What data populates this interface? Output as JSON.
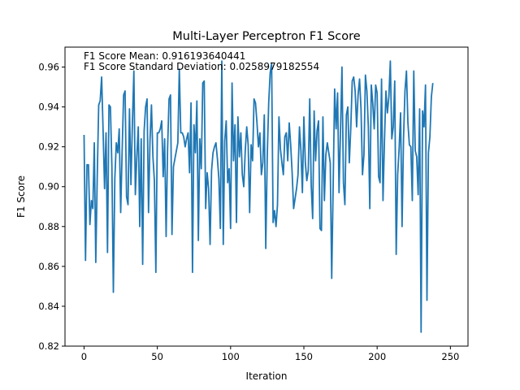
{
  "chart_data": {
    "type": "line",
    "title": "Multi-Layer Perceptron F1 Score",
    "xlabel": "Iteration",
    "ylabel": "F1 Score",
    "xlim": [
      -13,
      262
    ],
    "ylim": [
      0.82,
      0.97
    ],
    "xticks": [
      0,
      50,
      100,
      150,
      200,
      250
    ],
    "yticks": [
      0.82,
      0.84,
      0.86,
      0.88,
      0.9,
      0.92,
      0.94,
      0.96
    ],
    "ytick_labels": [
      "0.82",
      "0.84",
      "0.86",
      "0.88",
      "0.90",
      "0.92",
      "0.94",
      "0.96"
    ],
    "grid": false,
    "line_color": "#1f77b4",
    "annotations": [
      "F1 Score Mean: 0.916193640441",
      "F1 Score Standard Deviation: 0.0258979182554"
    ],
    "series": [
      {
        "values": [
          0.926,
          0.863,
          0.911,
          0.911,
          0.881,
          0.893,
          0.889,
          0.922,
          0.862,
          0.905,
          0.941,
          0.943,
          0.955,
          0.928,
          0.899,
          0.927,
          0.867,
          0.941,
          0.94,
          0.91,
          0.847,
          0.904,
          0.922,
          0.917,
          0.929,
          0.887,
          0.918,
          0.946,
          0.948,
          0.895,
          0.891,
          0.939,
          0.901,
          0.932,
          0.958,
          0.896,
          0.915,
          0.93,
          0.88,
          0.924,
          0.861,
          0.928,
          0.94,
          0.944,
          0.887,
          0.923,
          0.941,
          0.915,
          0.903,
          0.857,
          0.927,
          0.927,
          0.929,
          0.933,
          0.905,
          0.924,
          0.875,
          0.919,
          0.944,
          0.946,
          0.876,
          0.91,
          0.914,
          0.918,
          0.922,
          0.959,
          0.927,
          0.927,
          0.925,
          0.92,
          0.924,
          0.927,
          0.907,
          0.942,
          0.857,
          0.931,
          0.917,
          0.943,
          0.873,
          0.924,
          0.909,
          0.952,
          0.953,
          0.889,
          0.907,
          0.899,
          0.871,
          0.908,
          0.917,
          0.92,
          0.922,
          0.914,
          0.904,
          0.879,
          0.963,
          0.871,
          0.923,
          0.933,
          0.902,
          0.909,
          0.879,
          0.952,
          0.913,
          0.931,
          0.882,
          0.935,
          0.915,
          0.927,
          0.906,
          0.9,
          0.918,
          0.93,
          0.921,
          0.887,
          0.921,
          0.913,
          0.944,
          0.942,
          0.932,
          0.92,
          0.927,
          0.906,
          0.912,
          0.936,
          0.869,
          0.915,
          0.942,
          0.957,
          0.962,
          0.882,
          0.888,
          0.88,
          0.891,
          0.935,
          0.919,
          0.912,
          0.906,
          0.925,
          0.927,
          0.913,
          0.932,
          0.921,
          0.907,
          0.889,
          0.894,
          0.899,
          0.906,
          0.93,
          0.918,
          0.897,
          0.935,
          0.912,
          0.903,
          0.908,
          0.944,
          0.901,
          0.884,
          0.938,
          0.913,
          0.928,
          0.933,
          0.879,
          0.878,
          0.935,
          0.893,
          0.916,
          0.922,
          0.917,
          0.912,
          0.854,
          0.901,
          0.949,
          0.929,
          0.947,
          0.897,
          0.928,
          0.96,
          0.902,
          0.891,
          0.936,
          0.94,
          0.912,
          0.929,
          0.953,
          0.955,
          0.948,
          0.93,
          0.946,
          0.954,
          0.939,
          0.906,
          0.916,
          0.956,
          0.948,
          0.93,
          0.889,
          0.951,
          0.942,
          0.929,
          0.951,
          0.947,
          0.905,
          0.902,
          0.954,
          0.893,
          0.923,
          0.948,
          0.937,
          0.945,
          0.963,
          0.924,
          0.93,
          0.953,
          0.866,
          0.906,
          0.919,
          0.937,
          0.88,
          0.924,
          0.948,
          0.958,
          0.932,
          0.921,
          0.92,
          0.893,
          0.958,
          0.918,
          0.915,
          0.896,
          0.939,
          0.827,
          0.938,
          0.93,
          0.951,
          0.843,
          0.917,
          0.925,
          0.945,
          0.952
        ]
      }
    ]
  }
}
